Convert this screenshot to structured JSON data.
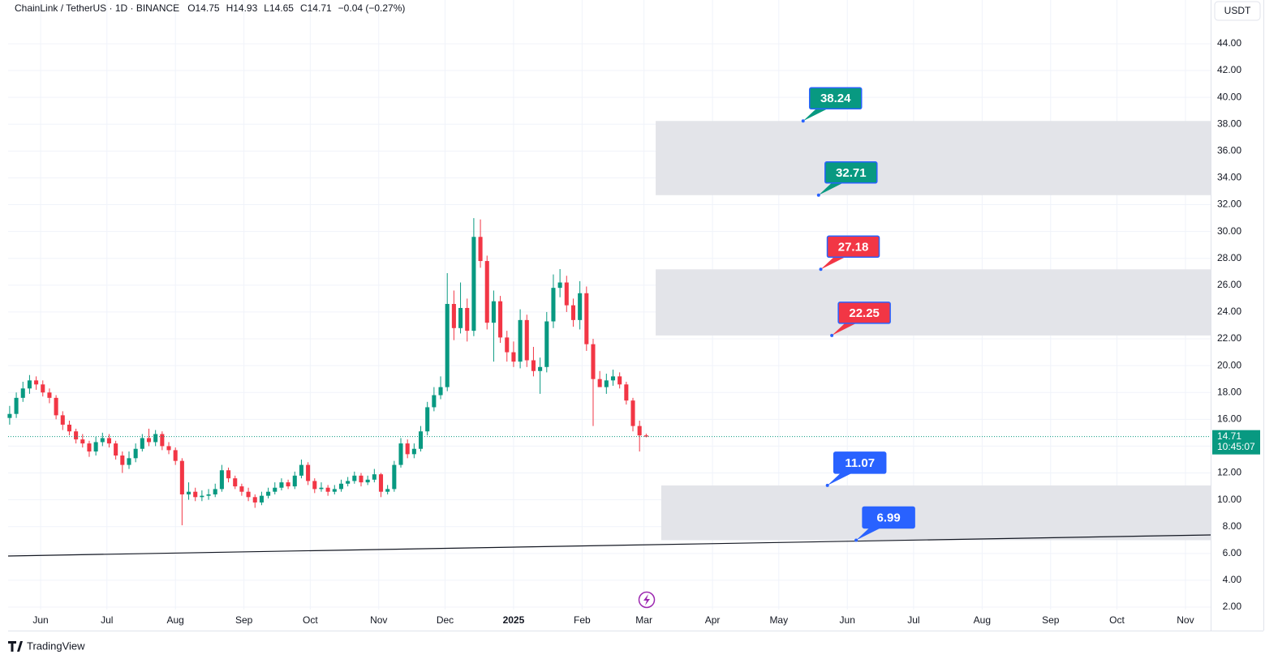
{
  "chart_data": {
    "type": "candlestick",
    "title": "ChainLink / TetherUS · 1D · BINANCE",
    "ohlc_text": [
      "O14.75",
      "H14.93",
      "L14.65",
      "C14.71",
      "−0.04 (−0.27%)"
    ],
    "currency": "USDT",
    "up_color": "#089981",
    "down_color": "#f23645",
    "x": [
      -14,
      -11,
      -8,
      -5,
      -2,
      1,
      4,
      7,
      10,
      13,
      16,
      19,
      22,
      25,
      28,
      31,
      34,
      37,
      40,
      43,
      46,
      49,
      52,
      55,
      58,
      61,
      64,
      67,
      70,
      73,
      76,
      79,
      82,
      85,
      88,
      91,
      94,
      97,
      100,
      103,
      106,
      109,
      112,
      115,
      118,
      121,
      124,
      127,
      130,
      133,
      136,
      139,
      142,
      145,
      148,
      151,
      154,
      157,
      160,
      163,
      166,
      169,
      172,
      175,
      178,
      181,
      184,
      187,
      190,
      193,
      196,
      199,
      202,
      205,
      208,
      211,
      214,
      217,
      220,
      223,
      226,
      229,
      232,
      235,
      238,
      241,
      244,
      247,
      250,
      253,
      256,
      259,
      262,
      265,
      268,
      271,
      274
    ],
    "open": [
      16.1,
      16.4,
      17.6,
      18.3,
      18.9,
      18.6,
      18.0,
      17.6,
      16.3,
      15.6,
      15.1,
      14.5,
      14.2,
      13.6,
      14.3,
      14.6,
      14.2,
      13.3,
      12.6,
      13.1,
      13.8,
      14.6,
      14.3,
      14.9,
      14.0,
      13.7,
      12.9,
      10.4,
      10.6,
      10.2,
      10.3,
      10.4,
      10.8,
      12.2,
      11.6,
      11.0,
      10.6,
      10.2,
      9.8,
      10.3,
      10.6,
      10.9,
      11.3,
      11.0,
      11.8,
      12.6,
      11.4,
      10.8,
      10.9,
      10.6,
      10.8,
      11.2,
      11.4,
      11.8,
      11.3,
      11.5,
      11.9,
      10.6,
      10.8,
      12.6,
      14.2,
      13.4,
      13.8,
      15.1,
      16.9,
      17.8,
      18.4,
      24.6,
      22.8,
      24.3,
      22.6,
      29.6,
      27.8,
      23.2,
      24.8,
      22.1,
      21.0,
      20.3,
      23.4,
      20.4,
      19.6,
      19.9,
      23.3,
      25.8,
      26.2,
      24.5,
      23.4,
      25.4,
      21.6,
      19.0,
      18.4,
      18.9,
      19.2,
      18.6,
      17.4,
      15.5,
      14.8
    ],
    "high": [
      17.0,
      18.0,
      18.8,
      19.3,
      19.2,
      18.9,
      18.3,
      17.8,
      16.6,
      15.9,
      15.3,
      14.9,
      14.4,
      14.7,
      15.0,
      14.9,
      14.4,
      13.6,
      13.6,
      14.2,
      14.9,
      15.3,
      15.2,
      15.1,
      14.3,
      13.9,
      13.1,
      11.3,
      10.9,
      10.7,
      10.8,
      11.2,
      12.6,
      12.4,
      11.8,
      11.2,
      10.9,
      10.4,
      10.6,
      10.9,
      11.3,
      11.6,
      11.5,
      12.1,
      13.0,
      12.8,
      11.6,
      11.3,
      11.1,
      11.1,
      11.5,
      11.7,
      12.1,
      12.0,
      11.8,
      12.3,
      12.0,
      11.1,
      12.9,
      14.6,
      14.5,
      14.2,
      15.5,
      17.3,
      18.4,
      19.2,
      26.9,
      25.6,
      26.2,
      25.0,
      31.0,
      30.9,
      28.2,
      25.6,
      25.2,
      22.6,
      21.8,
      24.2,
      23.8,
      21.4,
      20.6,
      24.0,
      26.8,
      27.2,
      26.7,
      25.0,
      26.3,
      25.9,
      22.0,
      19.6,
      19.4,
      19.7,
      19.5,
      18.8,
      17.6,
      15.9,
      14.93
    ],
    "low": [
      15.6,
      16.1,
      17.3,
      17.9,
      18.2,
      17.7,
      17.2,
      16.0,
      15.2,
      14.8,
      14.2,
      13.9,
      13.2,
      13.3,
      14.0,
      13.9,
      13.0,
      12.0,
      12.3,
      12.8,
      13.6,
      14.0,
      14.0,
      13.7,
      13.4,
      12.6,
      8.1,
      10.0,
      9.9,
      9.9,
      10.0,
      10.2,
      10.6,
      11.3,
      10.8,
      10.3,
      9.9,
      9.4,
      9.6,
      10.1,
      10.4,
      10.7,
      10.8,
      10.8,
      11.6,
      11.1,
      10.5,
      10.6,
      10.3,
      10.4,
      10.6,
      11.0,
      11.2,
      11.0,
      11.1,
      11.3,
      10.2,
      10.4,
      10.6,
      12.4,
      13.1,
      13.1,
      13.6,
      14.8,
      16.6,
      17.5,
      18.1,
      21.9,
      22.4,
      21.8,
      22.2,
      27.3,
      22.7,
      20.3,
      21.7,
      20.3,
      19.9,
      19.8,
      19.9,
      19.2,
      17.9,
      19.5,
      22.8,
      25.1,
      24.0,
      22.9,
      22.7,
      21.1,
      15.5,
      18.6,
      17.9,
      18.5,
      18.3,
      17.1,
      15.1,
      13.6,
      14.65
    ],
    "close": [
      16.4,
      17.6,
      18.3,
      18.9,
      18.6,
      18.0,
      17.6,
      16.3,
      15.6,
      15.1,
      14.5,
      14.2,
      13.6,
      14.3,
      14.6,
      14.2,
      13.3,
      12.6,
      13.1,
      13.8,
      14.6,
      14.3,
      14.9,
      14.0,
      13.7,
      12.9,
      10.4,
      10.6,
      10.2,
      10.3,
      10.4,
      10.8,
      12.2,
      11.6,
      11.0,
      10.6,
      10.2,
      9.8,
      10.3,
      10.6,
      10.9,
      11.3,
      11.0,
      11.8,
      12.6,
      11.4,
      10.8,
      10.9,
      10.6,
      10.8,
      11.2,
      11.4,
      11.8,
      11.3,
      11.5,
      11.9,
      10.6,
      10.8,
      12.6,
      14.2,
      13.4,
      13.8,
      15.1,
      16.9,
      17.8,
      18.4,
      24.6,
      22.8,
      24.3,
      22.6,
      29.6,
      27.8,
      23.2,
      24.8,
      22.1,
      21.0,
      20.3,
      23.4,
      20.4,
      19.6,
      19.9,
      23.3,
      25.8,
      26.2,
      24.5,
      23.4,
      25.4,
      21.6,
      19.0,
      18.4,
      18.9,
      19.2,
      18.6,
      17.4,
      15.5,
      14.8,
      14.71
    ],
    "xlim": [
      -14.7,
      529.4
    ],
    "xticks": [
      {
        "value": 0,
        "label": "Jun"
      },
      {
        "value": 30,
        "label": "Jul"
      },
      {
        "value": 61,
        "label": "Aug"
      },
      {
        "value": 92,
        "label": "Sep"
      },
      {
        "value": 122,
        "label": "Oct"
      },
      {
        "value": 153,
        "label": "Nov"
      },
      {
        "value": 183,
        "label": "Dec"
      },
      {
        "value": 214,
        "label": "2025"
      },
      {
        "value": 245,
        "label": "Feb"
      },
      {
        "value": 273,
        "label": "Mar"
      },
      {
        "value": 304,
        "label": "Apr"
      },
      {
        "value": 334,
        "label": "May"
      },
      {
        "value": 365,
        "label": "Jun"
      },
      {
        "value": 395,
        "label": "Jul"
      },
      {
        "value": 426,
        "label": "Aug"
      },
      {
        "value": 457,
        "label": "Sep"
      },
      {
        "value": 487,
        "label": "Oct"
      },
      {
        "value": 518,
        "label": "Nov"
      }
    ],
    "ylim": [
      1.82,
      47.26
    ],
    "yticks": [
      {
        "value": 2,
        "label": "2.00"
      },
      {
        "value": 4,
        "label": "4.00"
      },
      {
        "value": 6,
        "label": "6.00"
      },
      {
        "value": 8,
        "label": "8.00"
      },
      {
        "value": 10,
        "label": "10.00"
      },
      {
        "value": 12,
        "label": "12.00"
      },
      {
        "value": 14,
        "label": "14.00"
      },
      {
        "value": 16,
        "label": "16.00"
      },
      {
        "value": 18,
        "label": "18.00"
      },
      {
        "value": 20,
        "label": "20.00"
      },
      {
        "value": 22,
        "label": "22.00"
      },
      {
        "value": 24,
        "label": "24.00"
      },
      {
        "value": 26,
        "label": "26.00"
      },
      {
        "value": 28,
        "label": "28.00"
      },
      {
        "value": 30,
        "label": "30.00"
      },
      {
        "value": 32,
        "label": "32.00"
      },
      {
        "value": 34,
        "label": "34.00"
      },
      {
        "value": 36,
        "label": "36.00"
      },
      {
        "value": 38,
        "label": "38.00"
      },
      {
        "value": 40,
        "label": "40.00"
      },
      {
        "value": 42,
        "label": "42.00"
      },
      {
        "value": 44,
        "label": "44.00"
      }
    ],
    "grid": true,
    "zones": [
      {
        "x": [
          278.3,
          529.4
        ],
        "y": [
          32.71,
          38.24
        ],
        "color": "#e1e3e8"
      },
      {
        "x": [
          278.3,
          529.4
        ],
        "y": [
          22.25,
          27.18
        ],
        "color": "#e1e3e8"
      },
      {
        "x": [
          280.8,
          529.4
        ],
        "y": [
          6.99,
          11.07
        ],
        "color": "#e1e3e8"
      }
    ],
    "callouts": [
      {
        "value": 38.24,
        "x": 345,
        "color": "#089981"
      },
      {
        "value": 32.71,
        "x": 352,
        "color": "#089981"
      },
      {
        "value": 27.18,
        "x": 353,
        "color": "#f23645"
      },
      {
        "value": 22.25,
        "x": 358,
        "color": "#f23645"
      },
      {
        "value": 11.07,
        "x": 356,
        "color": "#2962ff"
      },
      {
        "value": 6.99,
        "x": 369,
        "color": "#2962ff"
      }
    ],
    "trendline": {
      "x": [
        -14.7,
        529.4
      ],
      "y": [
        5.81,
        7.38
      ],
      "color": "#131722"
    },
    "last_price": {
      "value": 14.71,
      "countdown": "10:45:07",
      "color": "#089981"
    }
  },
  "footer": {
    "brand": "TradingView"
  }
}
